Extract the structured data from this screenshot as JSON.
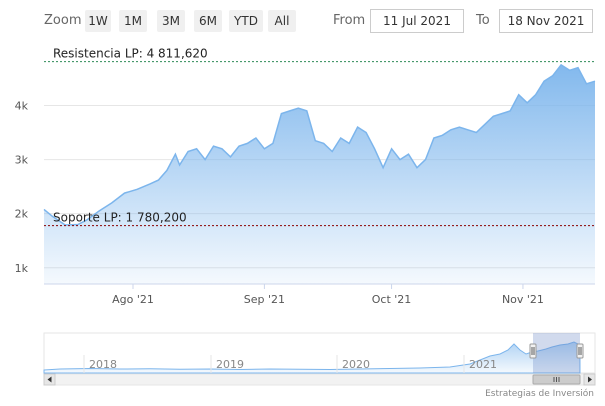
{
  "toolbar": {
    "zoom_label": "Zoom",
    "buttons": [
      "1W",
      "1M",
      "3M",
      "6M",
      "YTD",
      "All"
    ],
    "from_label": "From",
    "from_value": "11 Jul 2021",
    "to_label": "To",
    "to_value": "18 Nov 2021"
  },
  "colors": {
    "series_line": "#7cb5ec",
    "resistance_line": "#2e8b57",
    "support_line": "#8b0000"
  },
  "chart_data": {
    "type": "area",
    "title": "",
    "xlabel": "",
    "ylabel": "",
    "x_tick_labels": [
      "Ago '21",
      "Sep '21",
      "Oct '21",
      "Nov '21"
    ],
    "y_tick_labels": [
      "1k",
      "2k",
      "3k",
      "4k"
    ],
    "ylim": [
      700,
      5100
    ],
    "xlim": [
      "2021-07-11",
      "2021-11-18"
    ],
    "grid": true,
    "series": [
      {
        "values": [
          [
            "2021-07-11",
            2080
          ],
          [
            "2021-07-13",
            1950
          ],
          [
            "2021-07-16",
            1790
          ],
          [
            "2021-07-19",
            1800
          ],
          [
            "2021-07-21",
            1880
          ],
          [
            "2021-07-24",
            2050
          ],
          [
            "2021-07-27",
            2200
          ],
          [
            "2021-07-30",
            2380
          ],
          [
            "2021-08-02",
            2450
          ],
          [
            "2021-08-05",
            2550
          ],
          [
            "2021-08-07",
            2620
          ],
          [
            "2021-08-09",
            2800
          ],
          [
            "2021-08-11",
            3100
          ],
          [
            "2021-08-12",
            2900
          ],
          [
            "2021-08-14",
            3150
          ],
          [
            "2021-08-16",
            3200
          ],
          [
            "2021-08-18",
            3000
          ],
          [
            "2021-08-20",
            3250
          ],
          [
            "2021-08-22",
            3200
          ],
          [
            "2021-08-24",
            3050
          ],
          [
            "2021-08-26",
            3250
          ],
          [
            "2021-08-28",
            3300
          ],
          [
            "2021-08-30",
            3400
          ],
          [
            "2021-09-01",
            3200
          ],
          [
            "2021-09-03",
            3300
          ],
          [
            "2021-09-05",
            3850
          ],
          [
            "2021-09-07",
            3900
          ],
          [
            "2021-09-09",
            3950
          ],
          [
            "2021-09-11",
            3900
          ],
          [
            "2021-09-13",
            3350
          ],
          [
            "2021-09-15",
            3300
          ],
          [
            "2021-09-17",
            3150
          ],
          [
            "2021-09-19",
            3400
          ],
          [
            "2021-09-21",
            3300
          ],
          [
            "2021-09-23",
            3600
          ],
          [
            "2021-09-25",
            3500
          ],
          [
            "2021-09-27",
            3200
          ],
          [
            "2021-09-29",
            2850
          ],
          [
            "2021-10-01",
            3200
          ],
          [
            "2021-10-03",
            3000
          ],
          [
            "2021-10-05",
            3100
          ],
          [
            "2021-10-07",
            2850
          ],
          [
            "2021-10-09",
            3000
          ],
          [
            "2021-10-11",
            3400
          ],
          [
            "2021-10-13",
            3450
          ],
          [
            "2021-10-15",
            3550
          ],
          [
            "2021-10-17",
            3600
          ],
          [
            "2021-10-19",
            3550
          ],
          [
            "2021-10-21",
            3500
          ],
          [
            "2021-10-23",
            3650
          ],
          [
            "2021-10-25",
            3800
          ],
          [
            "2021-10-27",
            3850
          ],
          [
            "2021-10-29",
            3900
          ],
          [
            "2021-10-31",
            4200
          ],
          [
            "2021-11-02",
            4050
          ],
          [
            "2021-11-04",
            4200
          ],
          [
            "2021-11-06",
            4450
          ],
          [
            "2021-11-08",
            4550
          ],
          [
            "2021-11-10",
            4750
          ],
          [
            "2021-11-12",
            4650
          ],
          [
            "2021-11-14",
            4700
          ],
          [
            "2021-11-16",
            4400
          ],
          [
            "2021-11-18",
            4450
          ]
        ]
      }
    ],
    "plot_lines": [
      {
        "label": "Resistencia LP: 4 811,620",
        "value": 4811.62
      },
      {
        "label": "Soporte LP: 1 780,200",
        "value": 1780.2
      }
    ]
  },
  "navigator": {
    "year_labels": [
      "2018",
      "2019",
      "2020",
      "2021"
    ]
  },
  "credits": "Estrategias de Inversión"
}
